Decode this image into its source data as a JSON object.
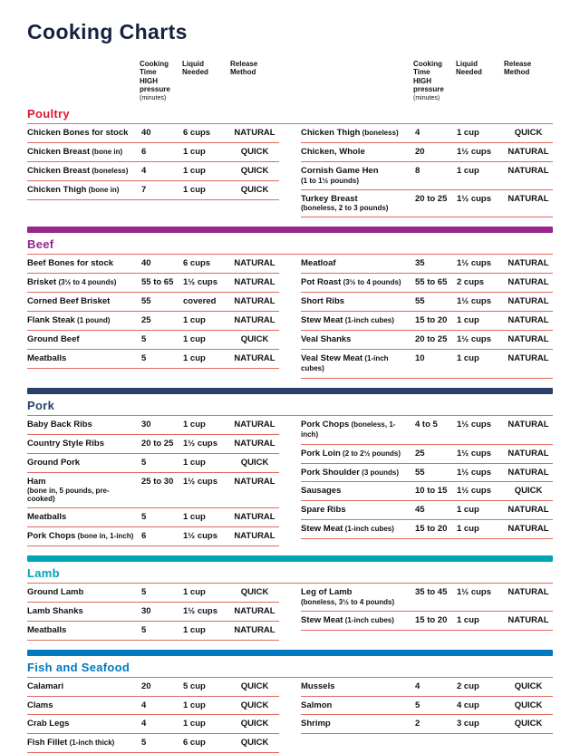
{
  "page": {
    "title": "Cooking Charts",
    "colors": {
      "title": "#16233f",
      "title_rule": "#9cb838",
      "row_rule": "#e06a60",
      "footer_bar": "#27416b"
    }
  },
  "column_headers": {
    "time": "Cooking\nTime\nHIGH\npressure",
    "time_sub": "(minutes)",
    "liquid": "Liquid\nNeeded",
    "release": "Release\nMethod"
  },
  "sections": [
    {
      "name": "Poultry",
      "color": "#e01735",
      "left": [
        {
          "item": "Chicken Bones for stock",
          "time": "40",
          "liquid": "6 cups",
          "release": "NATURAL"
        },
        {
          "item": "Chicken Breast",
          "detail": "(bone in)",
          "time": "6",
          "liquid": "1 cup",
          "release": "QUICK"
        },
        {
          "item": "Chicken Breast",
          "detail": "(boneless)",
          "time": "4",
          "liquid": "1 cup",
          "release": "QUICK"
        },
        {
          "item": "Chicken Thigh",
          "detail": "(bone in)",
          "time": "7",
          "liquid": "1 cup",
          "release": "QUICK"
        }
      ],
      "right": [
        {
          "item": "Chicken Thigh",
          "detail": "(boneless)",
          "time": "4",
          "liquid": "1 cup",
          "release": "QUICK"
        },
        {
          "item": "Chicken, Whole",
          "time": "20",
          "liquid": "1½ cups",
          "release": "NATURAL"
        },
        {
          "item": "Cornish Game Hen",
          "sub": "(1 to 1½ pounds)",
          "time": "8",
          "liquid": "1 cup",
          "release": "NATURAL"
        },
        {
          "item": "Turkey Breast",
          "sub": "(boneless, 2 to 3 pounds)",
          "time": "20 to 25",
          "liquid": "1½ cups",
          "release": "NATURAL"
        }
      ]
    },
    {
      "name": "Beef",
      "color": "#94268e",
      "left": [
        {
          "item": "Beef Bones for stock",
          "time": "40",
          "liquid": "6 cups",
          "release": "NATURAL"
        },
        {
          "item": "Brisket",
          "detail": "(3½ to 4 pounds)",
          "time": "55 to 65",
          "liquid": "1½ cups",
          "release": "NATURAL"
        },
        {
          "item": "Corned Beef Brisket",
          "time": "55",
          "liquid": "covered",
          "release": "NATURAL"
        },
        {
          "item": "Flank Steak",
          "detail": "(1 pound)",
          "time": "25",
          "liquid": "1 cup",
          "release": "NATURAL"
        },
        {
          "item": "Ground Beef",
          "time": "5",
          "liquid": "1 cup",
          "release": "QUICK"
        },
        {
          "item": "Meatballs",
          "time": "5",
          "liquid": "1 cup",
          "release": "NATURAL"
        }
      ],
      "right": [
        {
          "item": "Meatloaf",
          "time": "35",
          "liquid": "1½ cups",
          "release": "NATURAL"
        },
        {
          "item": "Pot Roast",
          "detail": "(3½ to 4 pounds)",
          "time": "55 to 65",
          "liquid": "2 cups",
          "release": "NATURAL"
        },
        {
          "item": "Short Ribs",
          "time": "55",
          "liquid": "1½ cups",
          "release": "NATURAL"
        },
        {
          "item": "Stew Meat",
          "detail": "(1-inch cubes)",
          "time": "15 to 20",
          "liquid": "1 cup",
          "release": "NATURAL"
        },
        {
          "item": "Veal Shanks",
          "time": "20 to 25",
          "liquid": "1½ cups",
          "release": "NATURAL"
        },
        {
          "item": "Veal Stew Meat",
          "detail": "(1-inch cubes)",
          "time": "10",
          "liquid": "1 cup",
          "release": "NATURAL"
        }
      ]
    },
    {
      "name": "Pork",
      "color": "#27416b",
      "left": [
        {
          "item": "Baby Back Ribs",
          "time": "30",
          "liquid": "1 cup",
          "release": "NATURAL"
        },
        {
          "item": "Country Style Ribs",
          "time": "20 to 25",
          "liquid": "1½ cups",
          "release": "NATURAL"
        },
        {
          "item": "Ground Pork",
          "time": "5",
          "liquid": "1 cup",
          "release": "QUICK"
        },
        {
          "item": "Ham",
          "sub": "(bone in, 5 pounds, pre-cooked)",
          "time": "25 to 30",
          "liquid": "1½ cups",
          "release": "NATURAL"
        },
        {
          "item": "Meatballs",
          "time": "5",
          "liquid": "1 cup",
          "release": "NATURAL"
        },
        {
          "item": "Pork Chops",
          "detail": "(bone in, 1-inch)",
          "time": "6",
          "liquid": "1½ cups",
          "release": "NATURAL"
        }
      ],
      "right": [
        {
          "item": "Pork Chops",
          "detail": "(boneless, 1-inch)",
          "time": "4 to 5",
          "liquid": "1½ cups",
          "release": "NATURAL"
        },
        {
          "item": "Pork Loin",
          "detail": "(2 to 2½ pounds)",
          "time": "25",
          "liquid": "1½ cups",
          "release": "NATURAL"
        },
        {
          "item": "Pork Shoulder",
          "detail": "(3 pounds)",
          "time": "55",
          "liquid": "1½ cups",
          "release": "NATURAL"
        },
        {
          "item": "Sausages",
          "time": "10 to 15",
          "liquid": "1½ cups",
          "release": "QUICK"
        },
        {
          "item": "Spare Ribs",
          "time": "45",
          "liquid": "1 cup",
          "release": "NATURAL"
        },
        {
          "item": "Stew Meat",
          "detail": "(1-inch cubes)",
          "time": "15 to 20",
          "liquid": "1 cup",
          "release": "NATURAL"
        }
      ]
    },
    {
      "name": "Lamb",
      "color": "#00a5b5",
      "left": [
        {
          "item": "Ground Lamb",
          "time": "5",
          "liquid": "1 cup",
          "release": "QUICK"
        },
        {
          "item": "Lamb Shanks",
          "time": "30",
          "liquid": "1½ cups",
          "release": "NATURAL"
        },
        {
          "item": "Meatballs",
          "time": "5",
          "liquid": "1 cup",
          "release": "NATURAL"
        }
      ],
      "right": [
        {
          "item": "Leg of Lamb",
          "sub": "(boneless, 3½ to 4 pounds)",
          "time": "35 to 45",
          "liquid": "1½ cups",
          "release": "NATURAL"
        },
        {
          "item": "Stew Meat",
          "detail": "(1-inch cubes)",
          "time": "15 to 20",
          "liquid": "1 cup",
          "release": "NATURAL"
        }
      ]
    },
    {
      "name": "Fish and Seafood",
      "color": "#0079c1",
      "left": [
        {
          "item": "Calamari",
          "time": "20",
          "liquid": "5 cup",
          "release": "QUICK"
        },
        {
          "item": "Clams",
          "time": "4",
          "liquid": "1 cup",
          "release": "QUICK"
        },
        {
          "item": "Crab Legs",
          "time": "4",
          "liquid": "1 cup",
          "release": "QUICK"
        },
        {
          "item": "Fish Fillet",
          "detail": "(1-inch thick)",
          "time": "5",
          "liquid": "6 cup",
          "release": "QUICK"
        }
      ],
      "right": [
        {
          "item": "Mussels",
          "time": "4",
          "liquid": "2 cup",
          "release": "QUICK"
        },
        {
          "item": "Salmon",
          "time": "5",
          "liquid": "4 cup",
          "release": "QUICK"
        },
        {
          "item": "Shrimp",
          "time": "2",
          "liquid": "3 cup",
          "release": "QUICK"
        }
      ]
    }
  ]
}
